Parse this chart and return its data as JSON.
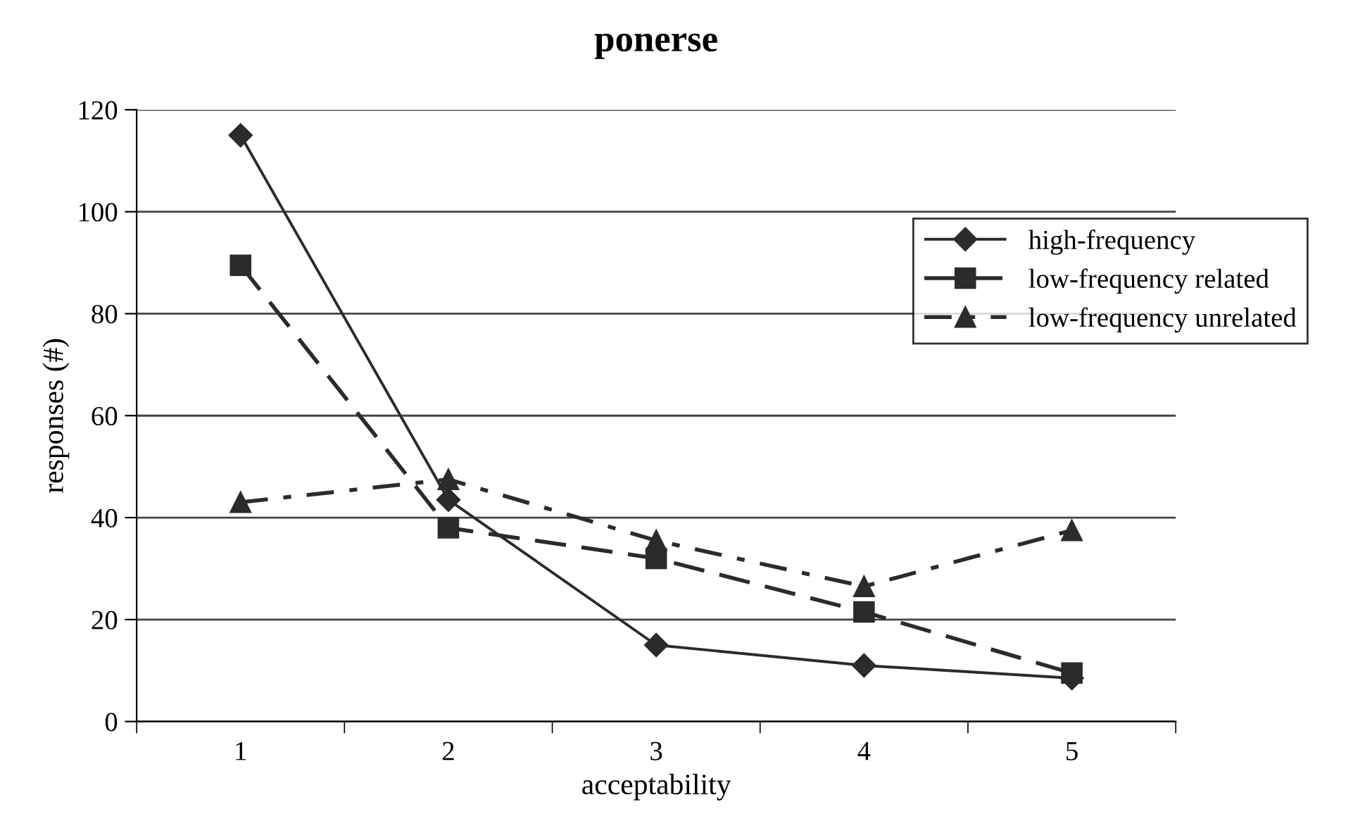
{
  "chart_data": {
    "type": "line",
    "title": "ponerse",
    "xlabel": "acceptability",
    "ylabel": "responses (#)",
    "categories": [
      "1",
      "2",
      "3",
      "4",
      "5"
    ],
    "series": [
      {
        "name": "high-frequency",
        "color": "#2b2b2b",
        "marker": "diamond",
        "line_style": "solid",
        "values": [
          115,
          43.5,
          15,
          11,
          8.5
        ]
      },
      {
        "name": "low-frequency related",
        "color": "#2b2b2b",
        "marker": "square",
        "line_style": "dashed",
        "values": [
          89.5,
          38,
          32,
          21.5,
          9.5
        ]
      },
      {
        "name": "low-frequency unrelated",
        "color": "#2b2b2b",
        "marker": "triangle",
        "line_style": "dashdot",
        "values": [
          43,
          47.5,
          35.5,
          26.5,
          37.5
        ]
      }
    ],
    "ylim": [
      0,
      120
    ],
    "yticks": [
      0,
      20,
      40,
      60,
      80,
      100,
      120
    ],
    "grid": "y",
    "legend": "right"
  }
}
